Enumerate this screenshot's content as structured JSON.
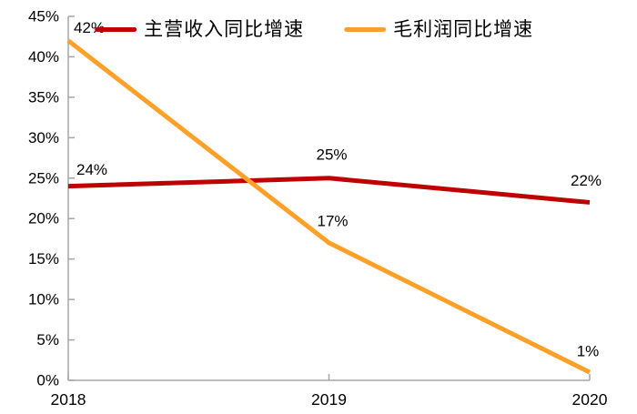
{
  "chart_data": {
    "type": "line",
    "categories": [
      "2018",
      "2019",
      "2020"
    ],
    "series": [
      {
        "name": "主营收入同比增速",
        "color": "#C00000",
        "values": [
          24,
          25,
          22
        ],
        "point_labels": [
          "24%",
          "25%",
          "22%"
        ]
      },
      {
        "name": "毛利润同比增速",
        "color": "#FFA028",
        "values": [
          42,
          17,
          1
        ],
        "point_labels": [
          "42%",
          "17%",
          "1%"
        ]
      }
    ],
    "title": "",
    "xlabel": "",
    "ylabel": "",
    "ylim": [
      0,
      45
    ],
    "ytick_step": 5,
    "ytick_labels": [
      "0%",
      "5%",
      "10%",
      "15%",
      "20%",
      "25%",
      "30%",
      "35%",
      "40%",
      "45%"
    ],
    "grid": false,
    "legend_position": "top",
    "axis_color": "#A6A6A6",
    "text_color": "#000000"
  }
}
